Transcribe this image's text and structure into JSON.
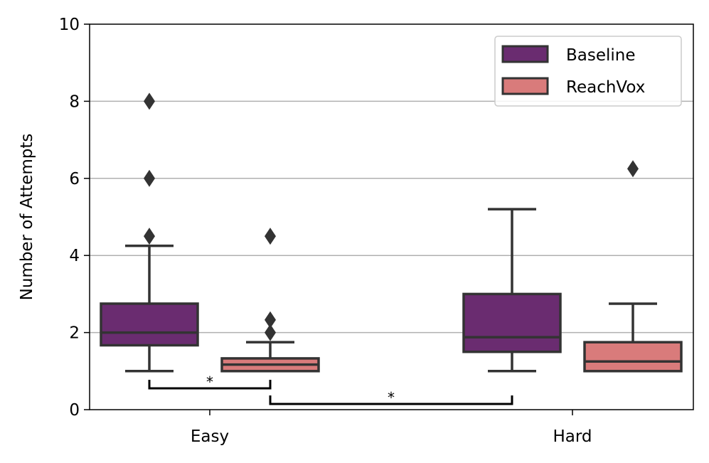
{
  "colors": {
    "baseline": "#6a2c70",
    "reachvox": "#d97b7b",
    "outline": "#333333",
    "grid": "#b0b0b0"
  },
  "chart_data": {
    "type": "box",
    "title": "",
    "xlabel": "",
    "ylabel": "Number of Attempts",
    "ylim": [
      0,
      10
    ],
    "yticks": [
      0,
      2,
      4,
      6,
      8,
      10
    ],
    "grid": "y",
    "legend_position": "top-right",
    "categories": [
      "Easy",
      "Hard"
    ],
    "series": [
      {
        "name": "Baseline",
        "color": "#6a2c70",
        "boxes": [
          {
            "category": "Easy",
            "whislo": 1.0,
            "q1": 1.67,
            "median": 2.0,
            "q3": 2.75,
            "whishi": 4.25,
            "fliers": [
              4.5,
              6.0,
              8.0
            ]
          },
          {
            "category": "Hard",
            "whislo": 1.0,
            "q1": 1.5,
            "median": 1.88,
            "q3": 3.0,
            "whishi": 5.2,
            "fliers": []
          }
        ]
      },
      {
        "name": "ReachVox",
        "color": "#d97b7b",
        "boxes": [
          {
            "category": "Easy",
            "whislo": 1.0,
            "q1": 1.0,
            "median": 1.17,
            "q3": 1.33,
            "whishi": 1.75,
            "fliers": [
              2.0,
              2.33,
              4.5
            ]
          },
          {
            "category": "Hard",
            "whislo": 1.0,
            "q1": 1.0,
            "median": 1.25,
            "q3": 1.75,
            "whishi": 2.75,
            "fliers": [
              6.25
            ]
          }
        ]
      }
    ],
    "annotations": [
      {
        "label": "*",
        "from": "Easy Baseline",
        "to": "Easy ReachVox"
      },
      {
        "label": "*",
        "from": "Easy ReachVox",
        "to": "Hard Baseline"
      }
    ]
  }
}
